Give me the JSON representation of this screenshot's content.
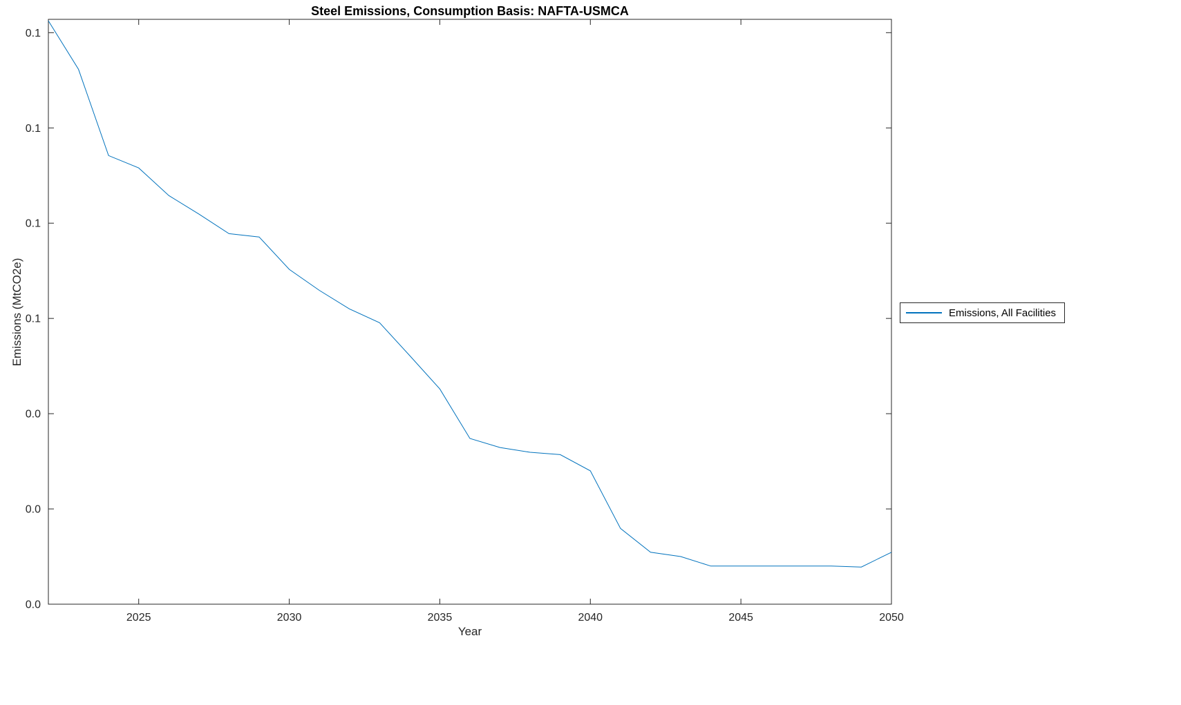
{
  "page": {
    "background": "#ffffff"
  },
  "chart_data": {
    "type": "line",
    "title": "Steel Emissions, Consumption Basis: NAFTA-USMCA",
    "xlabel": "Year",
    "ylabel": "Emissions (MtCO2e)",
    "x": [
      2022,
      2023,
      2024,
      2025,
      2026,
      2027,
      2028,
      2029,
      2030,
      2031,
      2032,
      2033,
      2034,
      2035,
      2036,
      2037,
      2038,
      2039,
      2040,
      2041,
      2042,
      2043,
      2044,
      2045,
      2046,
      2047,
      2048,
      2049,
      2050
    ],
    "values": [
      0.1225,
      0.1123,
      0.0942,
      0.0916,
      0.0858,
      0.0819,
      0.0778,
      0.0771,
      0.0703,
      0.0659,
      0.062,
      0.0591,
      0.0522,
      0.0452,
      0.0348,
      0.0329,
      0.0319,
      0.0314,
      0.028,
      0.0159,
      0.0109,
      0.01,
      0.008,
      0.008,
      0.008,
      0.008,
      0.008,
      0.0078,
      0.0109
    ],
    "xlim": [
      2022,
      2050
    ],
    "ylim": [
      0,
      0.1228
    ],
    "xticks": [
      2025,
      2030,
      2035,
      2040,
      2045,
      2050
    ],
    "yticks": [
      0,
      0.02,
      0.04,
      0.06,
      0.08,
      0.1,
      0.12
    ],
    "ytick_labels": [
      "0.0",
      "0.0",
      "0.0",
      "0.1",
      "0.1",
      "0.1",
      "0.1"
    ],
    "grid": false,
    "line_color": "#0072BD",
    "axis_color": "#262626",
    "legend": {
      "label": "Emissions, All Facilities",
      "position": "right-outside"
    }
  }
}
